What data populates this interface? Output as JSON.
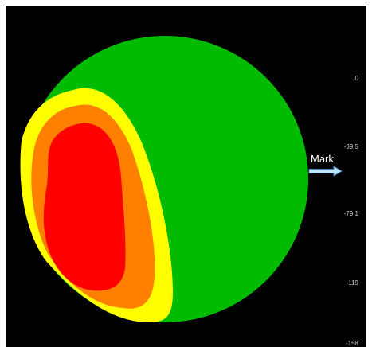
{
  "mark": {
    "label": "Mark"
  },
  "colorbar": {
    "tick_labels": [
      "0",
      "-39.5",
      "-79.1",
      "-119",
      "-158"
    ],
    "colors": {
      "green": "#00bb00",
      "yellow": "#ffff00",
      "orange": "#ff8000",
      "red": "#ff0000"
    }
  }
}
